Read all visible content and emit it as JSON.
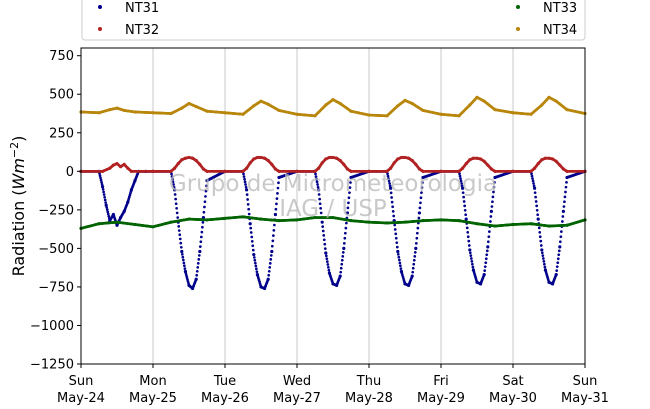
{
  "chart_data": {
    "type": "scatter",
    "title": "",
    "ylabel": "Radiation (W m⁻²)",
    "xlabel": "",
    "ylim": [
      -1250,
      800
    ],
    "xlim": [
      0,
      7
    ],
    "yticks": [
      -1250,
      -1000,
      -750,
      -500,
      -250,
      0,
      250,
      500,
      750
    ],
    "x_ticks": [
      {
        "day": 0,
        "line1": "Sun",
        "line2": "May-24"
      },
      {
        "day": 1,
        "line1": "Mon",
        "line2": "May-25"
      },
      {
        "day": 2,
        "line1": "Tue",
        "line2": "May-26"
      },
      {
        "day": 3,
        "line1": "Wed",
        "line2": "May-27"
      },
      {
        "day": 4,
        "line1": "Thu",
        "line2": "May-28"
      },
      {
        "day": 5,
        "line1": "Fri",
        "line2": "May-29"
      },
      {
        "day": 6,
        "line1": "Sat",
        "line2": "May-30"
      },
      {
        "day": 7,
        "line1": "Sun",
        "line2": "May-31"
      }
    ],
    "grid": "vertical",
    "legend_placement": "top",
    "watermark": [
      "Grupo de Micrometeorologia",
      "IAG / USP"
    ],
    "series": [
      {
        "name": "NT31",
        "color": "#00008b",
        "x": [
          0.0,
          0.25,
          0.3,
          0.35,
          0.4,
          0.45,
          0.5,
          0.55,
          0.6,
          0.65,
          0.7,
          0.75,
          0.8,
          0.9,
          1.0,
          1.25,
          1.3,
          1.35,
          1.4,
          1.45,
          1.5,
          1.55,
          1.6,
          1.65,
          1.7,
          1.75,
          2.0,
          2.25,
          2.3,
          2.35,
          2.4,
          2.45,
          2.5,
          2.55,
          2.6,
          2.65,
          2.7,
          2.75,
          3.0,
          3.25,
          3.3,
          3.35,
          3.4,
          3.45,
          3.5,
          3.55,
          3.6,
          3.65,
          3.7,
          3.75,
          4.0,
          4.25,
          4.3,
          4.35,
          4.4,
          4.45,
          4.5,
          4.55,
          4.6,
          4.65,
          4.7,
          4.75,
          5.0,
          5.25,
          5.3,
          5.35,
          5.4,
          5.45,
          5.5,
          5.55,
          5.6,
          5.65,
          5.7,
          5.75,
          6.0,
          6.25,
          6.3,
          6.35,
          6.4,
          6.45,
          6.5,
          6.55,
          6.6,
          6.65,
          6.7,
          6.75,
          7.0
        ],
        "y": [
          0,
          0,
          -100,
          -220,
          -320,
          -280,
          -350,
          -300,
          -260,
          -200,
          -120,
          -60,
          0,
          0,
          0,
          0,
          -120,
          -330,
          -520,
          -650,
          -740,
          -760,
          -700,
          -520,
          -300,
          -60,
          0,
          0,
          -120,
          -340,
          -540,
          -670,
          -750,
          -760,
          -700,
          -520,
          -280,
          -40,
          0,
          0,
          -120,
          -330,
          -530,
          -660,
          -730,
          -740,
          -680,
          -500,
          -270,
          -40,
          0,
          0,
          -110,
          -320,
          -520,
          -650,
          -730,
          -740,
          -680,
          -500,
          -270,
          -40,
          0,
          0,
          -110,
          -310,
          -510,
          -640,
          -720,
          -730,
          -670,
          -490,
          -260,
          -40,
          0,
          0,
          -110,
          -310,
          -510,
          -640,
          -720,
          -730,
          -670,
          -490,
          -260,
          -40,
          0
        ]
      },
      {
        "name": "NT32",
        "color": "#b22222",
        "x": [
          0.0,
          0.3,
          0.4,
          0.45,
          0.5,
          0.55,
          0.6,
          0.65,
          0.7,
          1.0,
          1.25,
          1.3,
          1.35,
          1.4,
          1.45,
          1.5,
          1.55,
          1.6,
          1.65,
          1.7,
          1.75,
          2.0,
          2.25,
          2.3,
          2.35,
          2.4,
          2.45,
          2.5,
          2.55,
          2.6,
          2.65,
          2.7,
          2.75,
          3.0,
          3.25,
          3.3,
          3.35,
          3.4,
          3.45,
          3.5,
          3.55,
          3.6,
          3.65,
          3.7,
          3.75,
          4.0,
          4.25,
          4.3,
          4.35,
          4.4,
          4.45,
          4.5,
          4.55,
          4.6,
          4.65,
          4.7,
          4.75,
          5.0,
          5.25,
          5.3,
          5.35,
          5.4,
          5.45,
          5.5,
          5.55,
          5.6,
          5.65,
          5.7,
          5.75,
          6.0,
          6.25,
          6.3,
          6.35,
          6.4,
          6.45,
          6.5,
          6.55,
          6.6,
          6.65,
          6.7,
          6.75,
          7.0
        ],
        "y": [
          0,
          0,
          20,
          40,
          50,
          30,
          45,
          20,
          0,
          0,
          0,
          20,
          50,
          75,
          85,
          90,
          85,
          70,
          45,
          15,
          0,
          0,
          0,
          20,
          55,
          80,
          90,
          90,
          85,
          70,
          45,
          15,
          0,
          0,
          0,
          20,
          55,
          80,
          90,
          90,
          85,
          70,
          45,
          15,
          0,
          0,
          0,
          20,
          55,
          80,
          90,
          90,
          85,
          70,
          45,
          15,
          0,
          0,
          0,
          20,
          50,
          75,
          85,
          85,
          80,
          65,
          40,
          15,
          0,
          0,
          0,
          20,
          50,
          75,
          85,
          85,
          80,
          65,
          40,
          15,
          0,
          0
        ]
      },
      {
        "name": "NT33",
        "color": "#006400",
        "x": [
          0.0,
          0.25,
          0.5,
          0.75,
          1.0,
          1.25,
          1.5,
          1.75,
          2.0,
          2.25,
          2.5,
          2.75,
          3.0,
          3.25,
          3.5,
          3.75,
          4.0,
          4.25,
          4.5,
          4.75,
          5.0,
          5.25,
          5.5,
          5.75,
          6.0,
          6.25,
          6.5,
          6.75,
          7.0
        ],
        "y": [
          -370,
          -340,
          -330,
          -345,
          -360,
          -330,
          -310,
          -315,
          -305,
          -295,
          -310,
          -320,
          -315,
          -300,
          -300,
          -320,
          -330,
          -335,
          -330,
          -320,
          -315,
          -320,
          -340,
          -355,
          -345,
          -340,
          -355,
          -350,
          -315
        ]
      },
      {
        "name": "NT34",
        "color": "#b8860b",
        "x": [
          0.0,
          0.25,
          0.4,
          0.5,
          0.6,
          0.75,
          1.0,
          1.25,
          1.4,
          1.5,
          1.6,
          1.75,
          2.0,
          2.25,
          2.4,
          2.5,
          2.6,
          2.75,
          3.0,
          3.25,
          3.4,
          3.5,
          3.6,
          3.75,
          4.0,
          4.25,
          4.4,
          4.5,
          4.6,
          4.75,
          5.0,
          5.25,
          5.4,
          5.5,
          5.6,
          5.75,
          6.0,
          6.25,
          6.4,
          6.5,
          6.6,
          6.75,
          7.0
        ],
        "y": [
          385,
          380,
          400,
          410,
          395,
          385,
          380,
          375,
          410,
          440,
          420,
          390,
          380,
          370,
          425,
          455,
          435,
          395,
          370,
          360,
          430,
          465,
          440,
          390,
          365,
          360,
          425,
          460,
          440,
          395,
          370,
          360,
          430,
          480,
          455,
          400,
          380,
          370,
          430,
          480,
          455,
          400,
          375
        ]
      }
    ]
  }
}
